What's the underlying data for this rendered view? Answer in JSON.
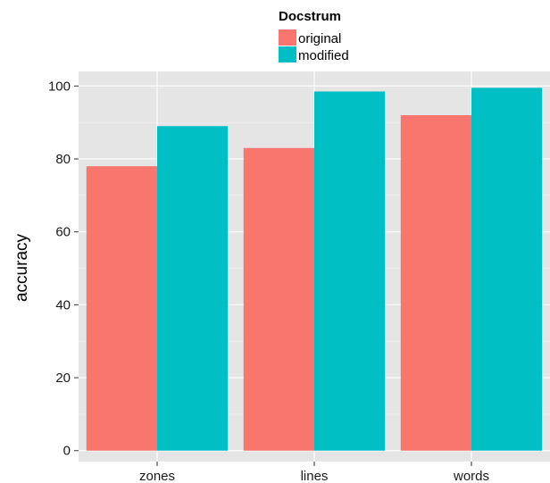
{
  "chart_data": {
    "type": "bar",
    "categories": [
      "zones",
      "lines",
      "words"
    ],
    "series": [
      {
        "name": "original",
        "values": [
          78,
          83,
          92
        ],
        "color": "#F8766D"
      },
      {
        "name": "modified",
        "values": [
          89,
          98.5,
          99.5
        ],
        "color": "#00BFC4"
      }
    ],
    "ylabel": "accuracy",
    "xlabel": "",
    "ylim": [
      -3,
      104
    ],
    "yticks": [
      0,
      20,
      40,
      60,
      80,
      100
    ],
    "legend": {
      "title": "Docstrum",
      "placement": "top"
    },
    "grid": true,
    "panel_background": "#E5E5E5"
  }
}
